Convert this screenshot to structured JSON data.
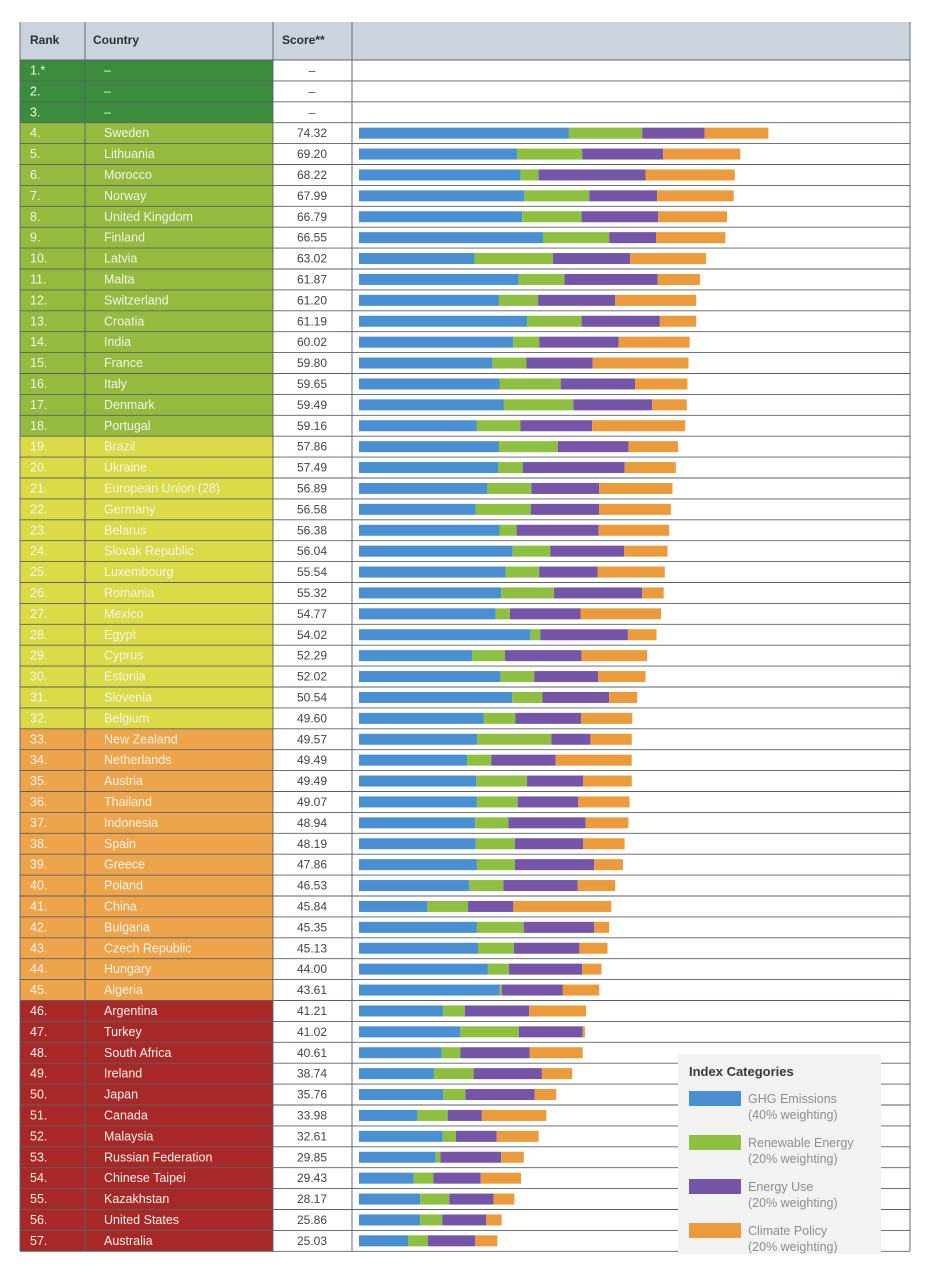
{
  "chart_data": {
    "type": "bar",
    "subtype": "stacked-horizontal-table",
    "headers": {
      "rank": "Rank",
      "country": "Country",
      "score": "Score**"
    },
    "series_names": [
      "GHG Emissions",
      "Renewable Energy",
      "Energy Use",
      "Climate Policy"
    ],
    "rows": [
      {
        "rank": "1.*",
        "country": "–",
        "score": "–",
        "tier": "top",
        "values": []
      },
      {
        "rank": "2.",
        "country": "–",
        "score": "–",
        "tier": "top",
        "values": []
      },
      {
        "rank": "3.",
        "country": "–",
        "score": "–",
        "tier": "top",
        "values": []
      },
      {
        "rank": "4.",
        "country": "Sweden",
        "score": "74.32",
        "tier": "good",
        "values": [
          38.1,
          13.3,
          11.3,
          11.6
        ]
      },
      {
        "rank": "5.",
        "country": "Lithuania",
        "score": "69.20",
        "tier": "good",
        "values": [
          28.7,
          11.8,
          14.7,
          14.0
        ]
      },
      {
        "rank": "6.",
        "country": "Morocco",
        "score": "68.22",
        "tier": "good",
        "values": [
          29.3,
          3.3,
          19.4,
          16.2
        ]
      },
      {
        "rank": "7.",
        "country": "Norway",
        "score": "67.99",
        "tier": "good",
        "values": [
          30.0,
          11.8,
          12.3,
          13.9
        ]
      },
      {
        "rank": "8.",
        "country": "United Kingdom",
        "score": "66.79",
        "tier": "good",
        "values": [
          29.6,
          10.8,
          13.9,
          12.5
        ]
      },
      {
        "rank": "9.",
        "country": "Finland",
        "score": "66.55",
        "tier": "good",
        "values": [
          33.4,
          12.0,
          8.5,
          12.6
        ]
      },
      {
        "rank": "10.",
        "country": "Latvia",
        "score": "63.02",
        "tier": "good",
        "values": [
          21.0,
          14.2,
          14.0,
          13.8
        ]
      },
      {
        "rank": "11.",
        "country": "Malta",
        "score": "61.87",
        "tier": "good",
        "values": [
          29.0,
          8.3,
          16.9,
          7.7
        ]
      },
      {
        "rank": "12.",
        "country": "Switzerland",
        "score": "61.20",
        "tier": "good",
        "values": [
          25.4,
          7.1,
          14.0,
          14.7
        ]
      },
      {
        "rank": "13.",
        "country": "Croatia",
        "score": "61.19",
        "tier": "good",
        "values": [
          30.5,
          9.9,
          14.2,
          6.6
        ]
      },
      {
        "rank": "14.",
        "country": "India",
        "score": "60.02",
        "tier": "good",
        "values": [
          28.0,
          4.7,
          14.4,
          12.9
        ]
      },
      {
        "rank": "15.",
        "country": "France",
        "score": "59.80",
        "tier": "good",
        "values": [
          24.2,
          6.2,
          12.0,
          17.4
        ]
      },
      {
        "rank": "16.",
        "country": "Italy",
        "score": "59.65",
        "tier": "good",
        "values": [
          25.5,
          11.1,
          13.5,
          9.5
        ]
      },
      {
        "rank": "17.",
        "country": "Denmark",
        "score": "59.49",
        "tier": "good",
        "values": [
          26.3,
          12.6,
          14.3,
          6.3
        ]
      },
      {
        "rank": "18.",
        "country": "Portugal",
        "score": "59.16",
        "tier": "good",
        "values": [
          21.4,
          7.9,
          13.0,
          16.9
        ]
      },
      {
        "rank": "19.",
        "country": "Brazil",
        "score": "57.86",
        "tier": "moderate",
        "values": [
          25.4,
          10.7,
          12.8,
          9.0
        ]
      },
      {
        "rank": "20.",
        "country": "Ukraine",
        "score": "57.49",
        "tier": "moderate",
        "values": [
          25.3,
          4.4,
          18.5,
          9.3
        ]
      },
      {
        "rank": "21.",
        "country": "European Union (28)",
        "score": "56.89",
        "tier": "moderate",
        "values": [
          23.3,
          8.0,
          12.3,
          13.3
        ]
      },
      {
        "rank": "22.",
        "country": "Germany",
        "score": "56.58",
        "tier": "moderate",
        "values": [
          21.2,
          10.0,
          12.4,
          13.0
        ]
      },
      {
        "rank": "23.",
        "country": "Belarus",
        "score": "56.38",
        "tier": "moderate",
        "values": [
          25.5,
          3.1,
          14.9,
          12.8
        ]
      },
      {
        "rank": "24.",
        "country": "Slovak Republic",
        "score": "56.04",
        "tier": "moderate",
        "values": [
          27.9,
          6.8,
          13.4,
          7.9
        ]
      },
      {
        "rank": "25.",
        "country": "Luxembourg",
        "score": "55.54",
        "tier": "moderate",
        "values": [
          26.6,
          6.1,
          10.6,
          12.2
        ]
      },
      {
        "rank": "26.",
        "country": "Romania",
        "score": "55.32",
        "tier": "moderate",
        "values": [
          25.8,
          9.6,
          16.0,
          3.9
        ]
      },
      {
        "rank": "27.",
        "country": "Mexico",
        "score": "54.77",
        "tier": "moderate",
        "values": [
          24.8,
          2.6,
          12.8,
          14.6
        ]
      },
      {
        "rank": "28.",
        "country": "Egypt",
        "score": "54.02",
        "tier": "moderate",
        "values": [
          31.1,
          1.8,
          15.9,
          5.2
        ]
      },
      {
        "rank": "29.",
        "country": "Cyprus",
        "score": "52.29",
        "tier": "moderate",
        "values": [
          20.5,
          6.0,
          13.9,
          11.9
        ]
      },
      {
        "rank": "30.",
        "country": "Estonia",
        "score": "52.02",
        "tier": "moderate",
        "values": [
          25.7,
          6.1,
          11.6,
          8.6
        ]
      },
      {
        "rank": "31.",
        "country": "Slovenia",
        "score": "50.54",
        "tier": "moderate",
        "values": [
          27.8,
          5.5,
          12.1,
          5.1
        ]
      },
      {
        "rank": "32.",
        "country": "Belgium",
        "score": "49.60",
        "tier": "moderate",
        "values": [
          22.6,
          5.8,
          11.9,
          9.3
        ]
      },
      {
        "rank": "33.",
        "country": "New Zealand",
        "score": "49.57",
        "tier": "poor",
        "values": [
          21.4,
          13.5,
          7.1,
          7.5
        ]
      },
      {
        "rank": "34.",
        "country": "Netherlands",
        "score": "49.49",
        "tier": "poor",
        "values": [
          19.6,
          4.4,
          11.7,
          13.8
        ]
      },
      {
        "rank": "35.",
        "country": "Austria",
        "score": "49.49",
        "tier": "poor",
        "values": [
          21.3,
          9.2,
          10.2,
          8.8
        ]
      },
      {
        "rank": "36.",
        "country": "Thailand",
        "score": "49.07",
        "tier": "poor",
        "values": [
          21.4,
          7.4,
          11.0,
          9.3
        ]
      },
      {
        "rank": "37.",
        "country": "Indonesia",
        "score": "48.94",
        "tier": "poor",
        "values": [
          21.1,
          6.0,
          14.0,
          7.8
        ]
      },
      {
        "rank": "38.",
        "country": "Spain",
        "score": "48.19",
        "tier": "poor",
        "values": [
          21.2,
          7.1,
          12.4,
          7.5
        ]
      },
      {
        "rank": "39.",
        "country": "Greece",
        "score": "47.86",
        "tier": "poor",
        "values": [
          21.4,
          6.9,
          14.4,
          5.2
        ]
      },
      {
        "rank": "40.",
        "country": "Poland",
        "score": "46.53",
        "tier": "poor",
        "values": [
          20.0,
          6.2,
          13.5,
          6.8
        ]
      },
      {
        "rank": "41.",
        "country": "China",
        "score": "45.84",
        "tier": "poor",
        "values": [
          12.4,
          7.4,
          8.2,
          17.8
        ]
      },
      {
        "rank": "42.",
        "country": "Bulgaria",
        "score": "45.35",
        "tier": "poor",
        "values": [
          21.4,
          8.5,
          12.8,
          2.7
        ]
      },
      {
        "rank": "43.",
        "country": "Czech Republic",
        "score": "45.13",
        "tier": "poor",
        "values": [
          21.6,
          6.5,
          11.9,
          5.1
        ]
      },
      {
        "rank": "44.",
        "country": "Hungary",
        "score": "44.00",
        "tier": "poor",
        "values": [
          23.4,
          3.8,
          13.3,
          3.5
        ]
      },
      {
        "rank": "45.",
        "country": "Algeria",
        "score": "43.61",
        "tier": "poor",
        "values": [
          25.5,
          0.4,
          11.1,
          6.6
        ]
      },
      {
        "rank": "46.",
        "country": "Argentina",
        "score": "41.21",
        "tier": "verypoor",
        "values": [
          15.3,
          3.9,
          11.7,
          10.3
        ]
      },
      {
        "rank": "47.",
        "country": "Turkey",
        "score": "41.02",
        "tier": "verypoor",
        "values": [
          18.4,
          10.6,
          11.6,
          0.4
        ]
      },
      {
        "rank": "48.",
        "country": "South Africa",
        "score": "40.61",
        "tier": "verypoor",
        "values": [
          15.0,
          3.4,
          12.6,
          9.6
        ]
      },
      {
        "rank": "49.",
        "country": "Ireland",
        "score": "38.74",
        "tier": "verypoor",
        "values": [
          13.6,
          7.2,
          12.4,
          5.5
        ]
      },
      {
        "rank": "50.",
        "country": "Japan",
        "score": "35.76",
        "tier": "verypoor",
        "values": [
          15.3,
          4.0,
          12.6,
          3.9
        ]
      },
      {
        "rank": "51.",
        "country": "Canada",
        "score": "33.98",
        "tier": "verypoor",
        "values": [
          10.6,
          5.5,
          6.2,
          11.7
        ]
      },
      {
        "rank": "52.",
        "country": "Malaysia",
        "score": "32.61",
        "tier": "verypoor",
        "values": [
          15.2,
          2.4,
          7.4,
          7.6
        ]
      },
      {
        "rank": "53.",
        "country": "Russian Federation",
        "score": "29.85",
        "tier": "verypoor",
        "values": [
          13.9,
          0.9,
          11.0,
          4.1
        ]
      },
      {
        "rank": "54.",
        "country": "Chinese Taipei",
        "score": "29.43",
        "tier": "verypoor",
        "values": [
          9.9,
          3.6,
          8.6,
          7.3
        ]
      },
      {
        "rank": "55.",
        "country": "Kazakhstan",
        "score": "28.17",
        "tier": "verypoor",
        "values": [
          11.1,
          5.3,
          8.0,
          3.8
        ]
      },
      {
        "rank": "56.",
        "country": "United States",
        "score": "25.86",
        "tier": "verypoor",
        "values": [
          11.1,
          4.0,
          8.0,
          2.8
        ]
      },
      {
        "rank": "57.",
        "country": "Australia",
        "score": "25.03",
        "tier": "verypoor",
        "values": [
          8.9,
          3.6,
          8.6,
          4.0
        ]
      }
    ],
    "legend": {
      "title": "Index Categories",
      "items": [
        {
          "name": "GHG Emissions",
          "weight": "(40% weighting)"
        },
        {
          "name": "Renewable Energy",
          "weight": "(20% weighting)"
        },
        {
          "name": "Energy Use",
          "weight": "(20% weighting)"
        },
        {
          "name": "Climate Policy",
          "weight": "(20% weighting)"
        }
      ]
    }
  },
  "colors": {
    "header_bg": "#cbd3dc",
    "grid": "#5a6068",
    "series": [
      "#4a8fd2",
      "#8dc040",
      "#7555a8",
      "#eb9a3c"
    ],
    "tiers": {
      "top": "#3c8c3e",
      "good": "#95bb3e",
      "moderate": "#dbdb48",
      "poor": "#eda44a",
      "verypoor": "#a82828"
    },
    "legend_bg": "#f2f2f2"
  }
}
